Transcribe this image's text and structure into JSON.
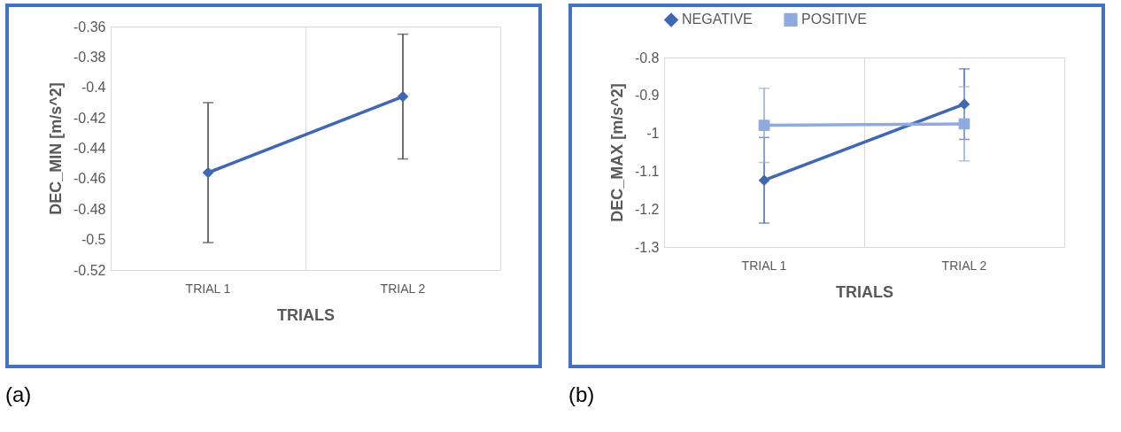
{
  "chart_data": [
    {
      "type": "line",
      "categories": [
        "TRIAL 1",
        "TRIAL 2"
      ],
      "xlabel": "TRIALS",
      "ylabel": "DEC_MIN [m/s^2]",
      "ylim": [
        -0.52,
        -0.36
      ],
      "yticks": [
        -0.52,
        -0.5,
        -0.48,
        -0.46,
        -0.44,
        -0.42,
        -0.4,
        -0.38,
        -0.36
      ],
      "grid": "x",
      "legend": false,
      "annotations": [
        "(a)"
      ],
      "series": [
        {
          "color": "#4068b2",
          "marker": "diamond",
          "values": [
            -0.456,
            -0.406
          ],
          "errors": [
            0.046,
            0.041
          ]
        }
      ]
    },
    {
      "type": "line",
      "categories": [
        "TRIAL 1",
        "TRIAL 2"
      ],
      "xlabel": "TRIALS",
      "ylabel": "DEC_MAX [m/s^2]",
      "ylim": [
        -1.3,
        -0.8
      ],
      "yticks": [
        -1.3,
        -1.2,
        -1.1,
        -1,
        -0.9,
        -0.8
      ],
      "grid": "x",
      "legend": "top",
      "annotations": [
        "(b)"
      ],
      "series": [
        {
          "name": "NEGATIVE",
          "color": "#4068b2",
          "marker": "diamond",
          "values": [
            -1.124,
            -0.923
          ],
          "errors": [
            0.113,
            0.093
          ]
        },
        {
          "name": "POSITIVE",
          "color": "#8faadc",
          "marker": "square",
          "values": [
            -0.979,
            -0.975
          ],
          "errors": [
            0.098,
            0.098
          ]
        }
      ]
    }
  ]
}
